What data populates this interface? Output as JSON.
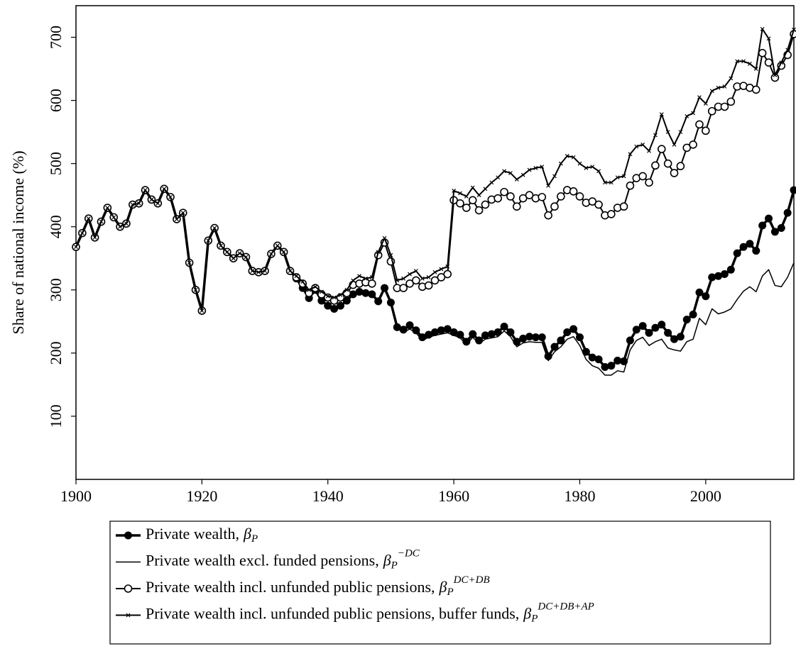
{
  "chart_data": {
    "type": "line",
    "y_label": "Share of national income (%)",
    "xlim": [
      1900,
      2014
    ],
    "xticks": [
      1900,
      1920,
      1940,
      1960,
      1980,
      2000
    ],
    "ylim": [
      0,
      750
    ],
    "yticks": [
      100,
      200,
      300,
      400,
      500,
      600,
      700
    ],
    "x": [
      1900,
      1901,
      1902,
      1903,
      1904,
      1905,
      1906,
      1907,
      1908,
      1909,
      1910,
      1911,
      1912,
      1913,
      1914,
      1915,
      1916,
      1917,
      1918,
      1919,
      1920,
      1921,
      1922,
      1923,
      1924,
      1925,
      1926,
      1927,
      1928,
      1929,
      1930,
      1931,
      1932,
      1933,
      1934,
      1935,
      1936,
      1937,
      1938,
      1939,
      1940,
      1941,
      1942,
      1943,
      1944,
      1945,
      1946,
      1947,
      1948,
      1949,
      1950,
      1951,
      1952,
      1953,
      1954,
      1955,
      1956,
      1957,
      1958,
      1959,
      1960,
      1961,
      1962,
      1963,
      1964,
      1965,
      1966,
      1967,
      1968,
      1969,
      1970,
      1971,
      1972,
      1973,
      1974,
      1975,
      1976,
      1977,
      1978,
      1979,
      1980,
      1981,
      1982,
      1983,
      1984,
      1985,
      1986,
      1987,
      1988,
      1989,
      1990,
      1991,
      1992,
      1993,
      1994,
      1995,
      1996,
      1997,
      1998,
      1999,
      2000,
      2001,
      2002,
      2003,
      2004,
      2005,
      2006,
      2007,
      2008,
      2009,
      2010,
      2011,
      2012,
      2013,
      2014
    ],
    "series": [
      {
        "name": "Private wealth,",
        "symbol": "β",
        "sub": "P",
        "color": "#000000",
        "marker": "filled-circle",
        "line_width": 3.5,
        "values": [
          368,
          390,
          413,
          383,
          408,
          430,
          415,
          400,
          405,
          435,
          437,
          458,
          443,
          437,
          460,
          447,
          412,
          422,
          343,
          300,
          267,
          378,
          398,
          370,
          360,
          350,
          358,
          352,
          330,
          328,
          330,
          357,
          370,
          360,
          330,
          318,
          303,
          287,
          300,
          283,
          275,
          270,
          275,
          283,
          293,
          297,
          295,
          293,
          282,
          303,
          280,
          241,
          237,
          244,
          236,
          225,
          229,
          233,
          236,
          238,
          233,
          229,
          218,
          230,
          220,
          228,
          230,
          233,
          242,
          233,
          218,
          223,
          226,
          225,
          225,
          195,
          210,
          220,
          233,
          238,
          225,
          202,
          193,
          190,
          178,
          180,
          188,
          187,
          220,
          237,
          243,
          232,
          240,
          245,
          232,
          222,
          226,
          253,
          261,
          296,
          290,
          320,
          322,
          325,
          332,
          358,
          368,
          373,
          362,
          402,
          413,
          392,
          398,
          422,
          458
        ]
      },
      {
        "name": "Private wealth excl. funded pensions,",
        "symbol": "β",
        "sub": "P",
        "sup": "−DC",
        "color": "#000000",
        "marker": "none",
        "line_width": 1.5,
        "values": [
          368,
          390,
          413,
          383,
          408,
          430,
          415,
          400,
          405,
          435,
          437,
          458,
          443,
          437,
          460,
          447,
          412,
          422,
          343,
          300,
          267,
          378,
          398,
          370,
          360,
          350,
          358,
          352,
          330,
          328,
          330,
          357,
          370,
          360,
          330,
          318,
          303,
          287,
          300,
          283,
          275,
          270,
          275,
          283,
          293,
          297,
          295,
          293,
          282,
          303,
          280,
          240,
          233,
          238,
          232,
          220,
          225,
          228,
          230,
          232,
          228,
          224,
          213,
          225,
          215,
          222,
          224,
          226,
          235,
          226,
          210,
          216,
          218,
          217,
          217,
          188,
          202,
          210,
          222,
          226,
          212,
          190,
          180,
          176,
          165,
          165,
          172,
          170,
          205,
          220,
          225,
          212,
          218,
          222,
          208,
          205,
          203,
          218,
          222,
          255,
          245,
          270,
          262,
          265,
          270,
          285,
          298,
          305,
          297,
          322,
          332,
          307,
          305,
          320,
          343
        ]
      },
      {
        "name": "Private wealth incl. unfunded public pensions,",
        "symbol": "β",
        "sub": "P",
        "sup": "DC+DB",
        "color": "#000000",
        "marker": "open-circle",
        "line_width": 2,
        "values": [
          368,
          390,
          413,
          383,
          408,
          430,
          415,
          400,
          405,
          435,
          437,
          458,
          443,
          437,
          460,
          447,
          412,
          422,
          343,
          300,
          267,
          378,
          398,
          370,
          360,
          350,
          358,
          352,
          330,
          328,
          330,
          357,
          370,
          360,
          330,
          320,
          310,
          295,
          303,
          293,
          288,
          283,
          288,
          295,
          308,
          310,
          312,
          310,
          355,
          375,
          345,
          303,
          303,
          310,
          315,
          305,
          307,
          315,
          320,
          325,
          442,
          437,
          430,
          442,
          426,
          435,
          443,
          445,
          455,
          448,
          432,
          445,
          450,
          445,
          447,
          418,
          432,
          448,
          458,
          456,
          448,
          438,
          440,
          435,
          418,
          420,
          430,
          432,
          465,
          477,
          480,
          470,
          497,
          523,
          500,
          485,
          496,
          525,
          530,
          562,
          552,
          583,
          590,
          590,
          598,
          622,
          623,
          620,
          617,
          675,
          660,
          636,
          655,
          672,
          705
        ]
      },
      {
        "name": "Private wealth incl. unfunded public pensions, buffer funds,",
        "symbol": "β",
        "sub": "P",
        "sup": "DC+DB+AP",
        "color": "#000000",
        "marker": "x",
        "line_width": 2,
        "values": [
          368,
          390,
          413,
          383,
          408,
          430,
          415,
          400,
          405,
          435,
          437,
          458,
          443,
          437,
          460,
          447,
          412,
          422,
          343,
          300,
          267,
          378,
          398,
          370,
          360,
          350,
          358,
          352,
          330,
          328,
          330,
          357,
          370,
          360,
          330,
          322,
          313,
          300,
          305,
          297,
          290,
          288,
          292,
          300,
          315,
          322,
          318,
          320,
          360,
          382,
          355,
          315,
          318,
          325,
          330,
          318,
          320,
          328,
          333,
          337,
          457,
          453,
          448,
          462,
          450,
          460,
          470,
          478,
          488,
          485,
          475,
          482,
          490,
          493,
          495,
          465,
          480,
          500,
          512,
          510,
          500,
          493,
          495,
          488,
          470,
          470,
          478,
          480,
          515,
          527,
          530,
          520,
          545,
          578,
          550,
          530,
          550,
          575,
          580,
          605,
          595,
          615,
          620,
          622,
          635,
          662,
          662,
          658,
          650,
          713,
          698,
          640,
          660,
          680,
          712
        ]
      }
    ]
  }
}
